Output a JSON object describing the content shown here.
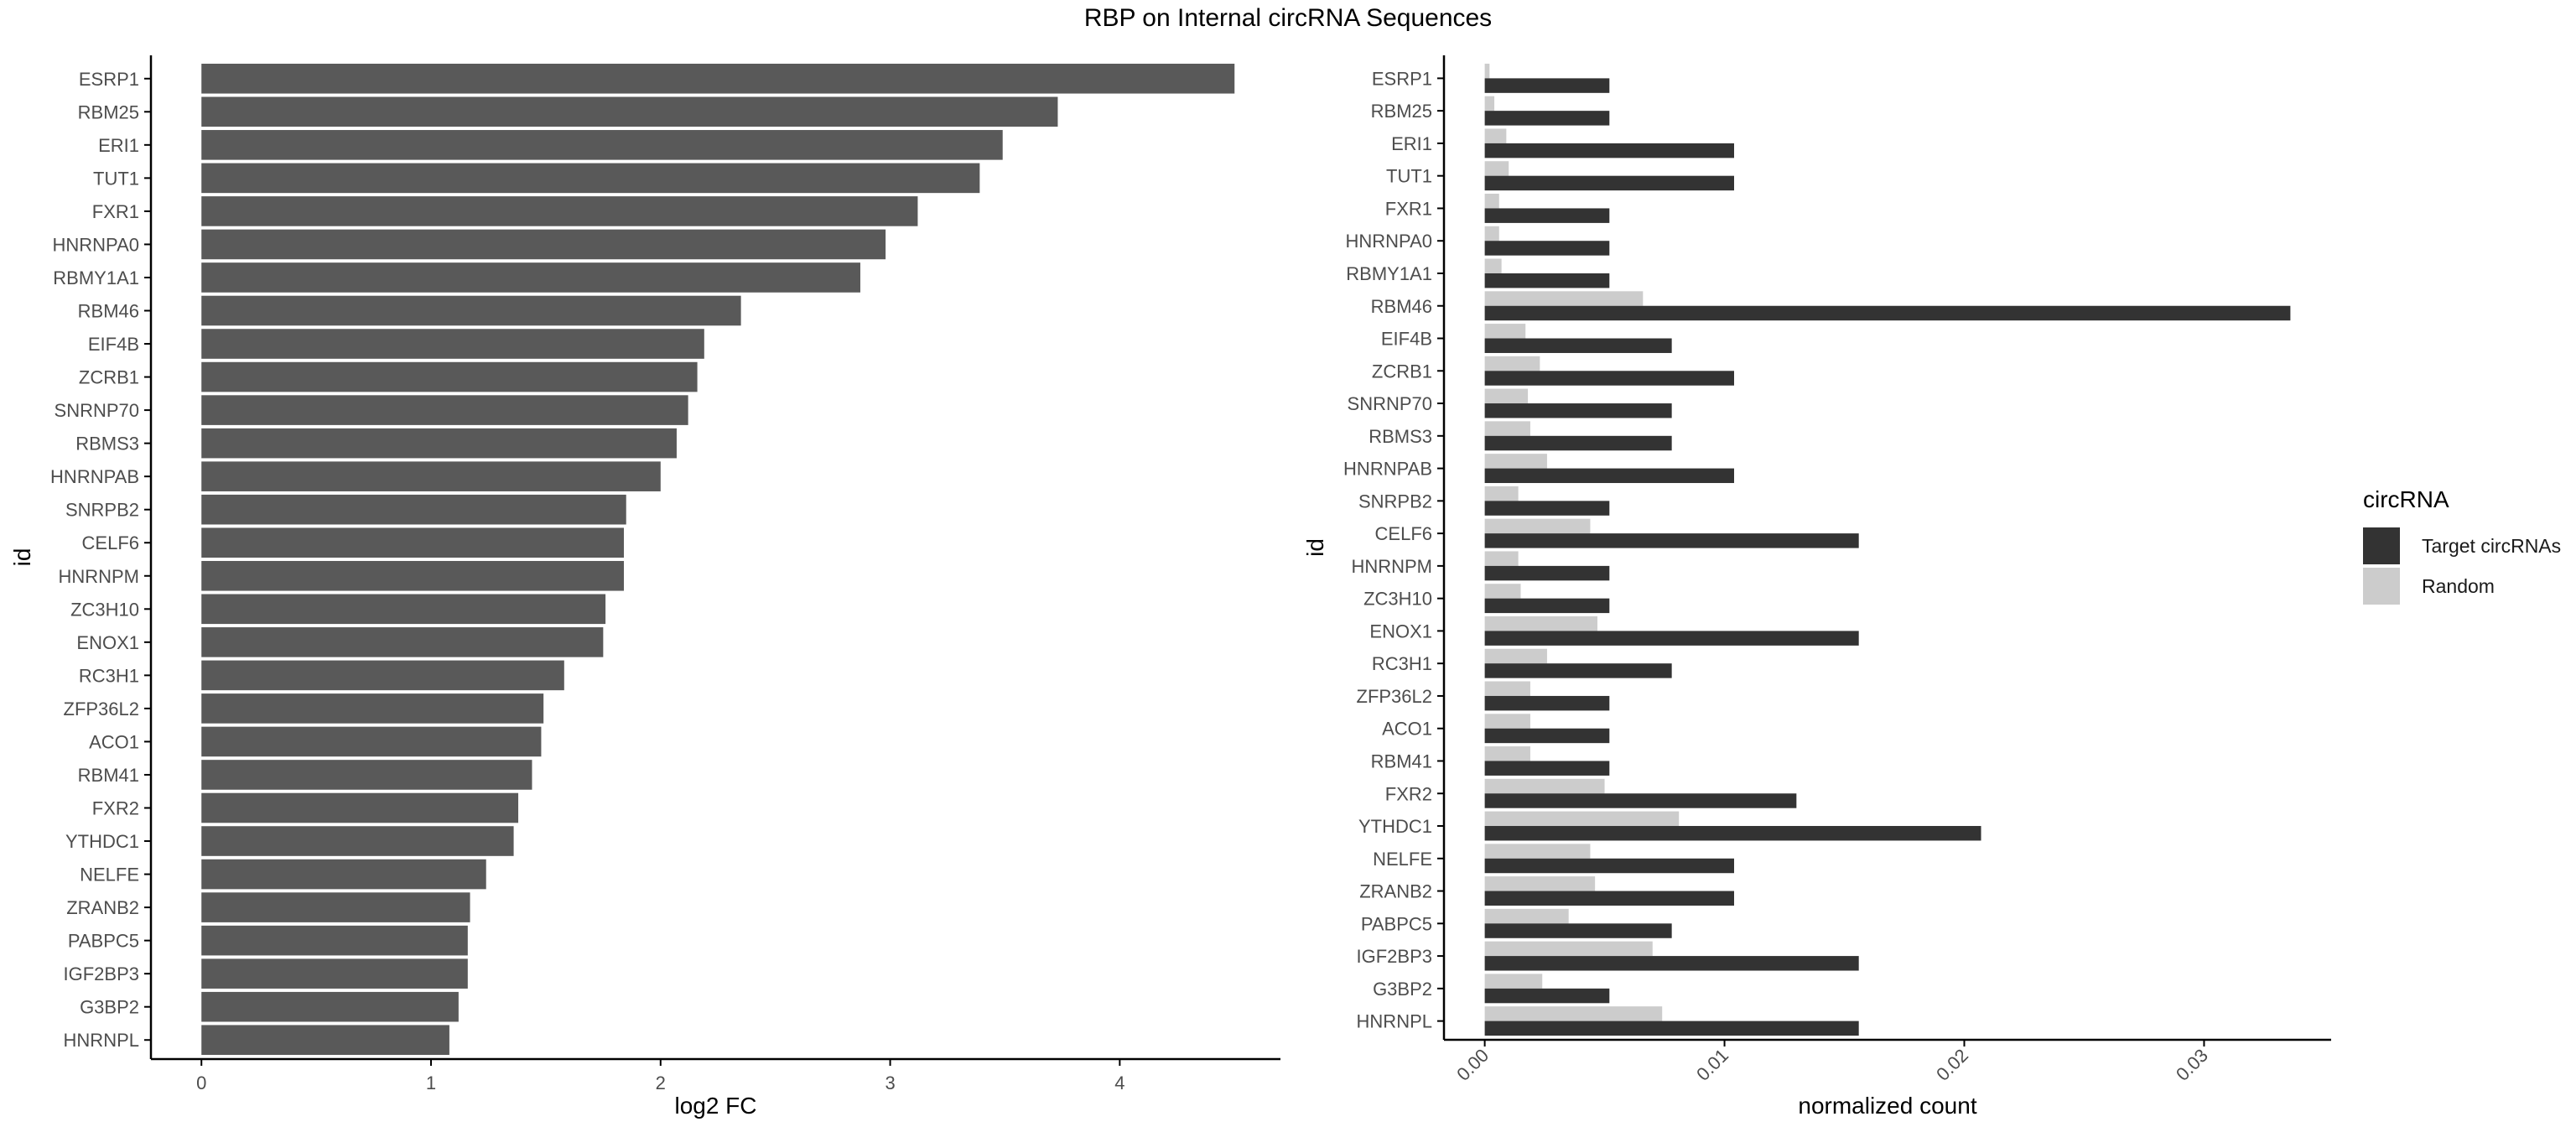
{
  "title": "RBP on Internal circRNA Sequences",
  "colors": {
    "bar": "#595959",
    "target": "#333333",
    "random": "#cccccc",
    "axis": "#000000",
    "tick_text": "#4d4d4d"
  },
  "chart_data": [
    {
      "type": "bar",
      "orientation": "horizontal",
      "categories": [
        "ESRP1",
        "RBM25",
        "ERI1",
        "TUT1",
        "FXR1",
        "HNRNPA0",
        "RBMY1A1",
        "RBM46",
        "EIF4B",
        "ZCRB1",
        "SNRNP70",
        "RBMS3",
        "HNRNPAB",
        "SNRPB2",
        "CELF6",
        "HNRNPM",
        "ZC3H10",
        "ENOX1",
        "RC3H1",
        "ZFP36L2",
        "ACO1",
        "RBM41",
        "FXR2",
        "YTHDC1",
        "NELFE",
        "ZRANB2",
        "PABPC5",
        "IGF2BP3",
        "G3BP2",
        "HNRNPL"
      ],
      "values": [
        4.5,
        3.73,
        3.49,
        3.39,
        3.12,
        2.98,
        2.87,
        2.35,
        2.19,
        2.16,
        2.12,
        2.07,
        2.0,
        1.85,
        1.84,
        1.84,
        1.76,
        1.75,
        1.58,
        1.49,
        1.48,
        1.44,
        1.38,
        1.36,
        1.24,
        1.17,
        1.16,
        1.16,
        1.12,
        1.08
      ],
      "xlabel": "log2 FC",
      "ylabel": "id",
      "xlim": [
        -0.22,
        4.7
      ],
      "x_ticks": [
        0,
        1,
        2,
        3,
        4
      ],
      "tick_labels": [
        "0",
        "1",
        "2",
        "3",
        "4"
      ],
      "grid": false
    },
    {
      "type": "bar",
      "orientation": "horizontal",
      "grouped": true,
      "categories": [
        "ESRP1",
        "RBM25",
        "ERI1",
        "TUT1",
        "FXR1",
        "HNRNPA0",
        "RBMY1A1",
        "RBM46",
        "EIF4B",
        "ZCRB1",
        "SNRNP70",
        "RBMS3",
        "HNRNPAB",
        "SNRPB2",
        "CELF6",
        "HNRNPM",
        "ZC3H10",
        "ENOX1",
        "RC3H1",
        "ZFP36L2",
        "ACO1",
        "RBM41",
        "FXR2",
        "YTHDC1",
        "NELFE",
        "ZRANB2",
        "PABPC5",
        "IGF2BP3",
        "G3BP2",
        "HNRNPL"
      ],
      "series": [
        {
          "name": "Target circRNAs",
          "values": [
            0.0052,
            0.0052,
            0.0104,
            0.0104,
            0.0052,
            0.0052,
            0.0052,
            0.0336,
            0.0078,
            0.0104,
            0.0078,
            0.0078,
            0.0104,
            0.0052,
            0.0156,
            0.0052,
            0.0052,
            0.0156,
            0.0078,
            0.0052,
            0.0052,
            0.0052,
            0.013,
            0.0207,
            0.0104,
            0.0104,
            0.0078,
            0.0156,
            0.0052,
            0.0156
          ]
        },
        {
          "name": "Random",
          "values": [
            0.0002,
            0.0004,
            0.0009,
            0.001,
            0.0006,
            0.0006,
            0.0007,
            0.0066,
            0.0017,
            0.0023,
            0.0018,
            0.0019,
            0.0026,
            0.0014,
            0.0044,
            0.0014,
            0.0015,
            0.0047,
            0.0026,
            0.0019,
            0.0019,
            0.0019,
            0.005,
            0.0081,
            0.0044,
            0.0046,
            0.0035,
            0.007,
            0.0024,
            0.0074
          ]
        }
      ],
      "xlabel": "normalized count",
      "ylabel": "id",
      "xlim": [
        -0.0017,
        0.0353
      ],
      "x_ticks": [
        0,
        0.01,
        0.02,
        0.03
      ],
      "tick_labels": [
        "0.00",
        "0.01",
        "0.02",
        "0.03"
      ],
      "legend": {
        "title": "circRNA",
        "position": "right"
      },
      "grid": false
    }
  ]
}
